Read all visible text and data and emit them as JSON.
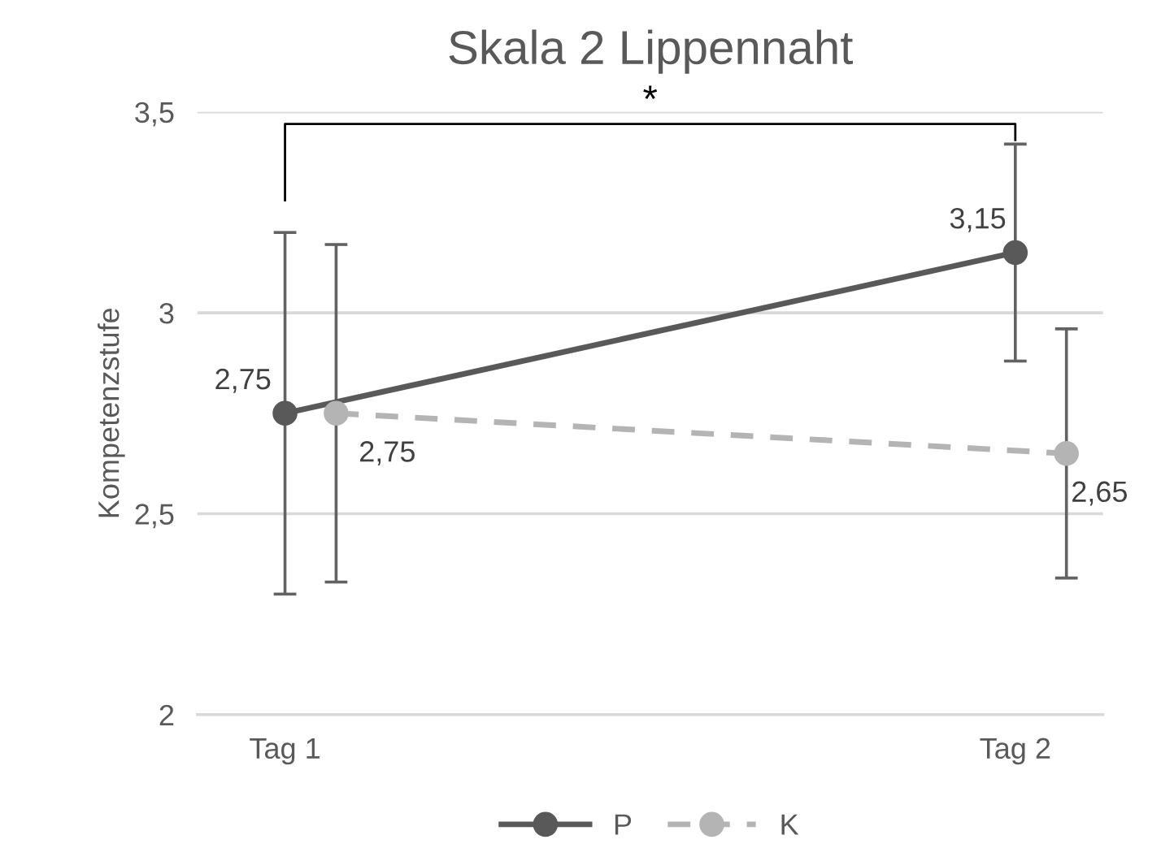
{
  "chart_data": {
    "type": "line",
    "title": "Skala 2 Lippennaht",
    "ylabel": "Kompetenzstufe",
    "categories": [
      "Tag 1",
      "Tag 2"
    ],
    "series": [
      {
        "name": "P",
        "color": "#595959",
        "values": [
          2.75,
          3.15
        ],
        "errors": [
          0.45,
          0.27
        ],
        "value_labels": [
          "2,75",
          "3,15"
        ],
        "line_style": "solid",
        "marker": "circle"
      },
      {
        "name": "K",
        "color": "#b4b4b4",
        "values": [
          2.75,
          2.65
        ],
        "errors": [
          0.42,
          0.31
        ],
        "value_labels": [
          "2,75",
          "2,65"
        ],
        "line_style": "dashed",
        "marker": "circle"
      }
    ],
    "ylim": [
      2,
      3.5
    ],
    "yticks": [
      2,
      {
        "value": 2.5,
        "label": "2,5"
      },
      3,
      {
        "value": 3.5,
        "label": "3,5"
      }
    ],
    "grid": "y",
    "legend": "bottom",
    "annotations": [
      "*"
    ]
  }
}
